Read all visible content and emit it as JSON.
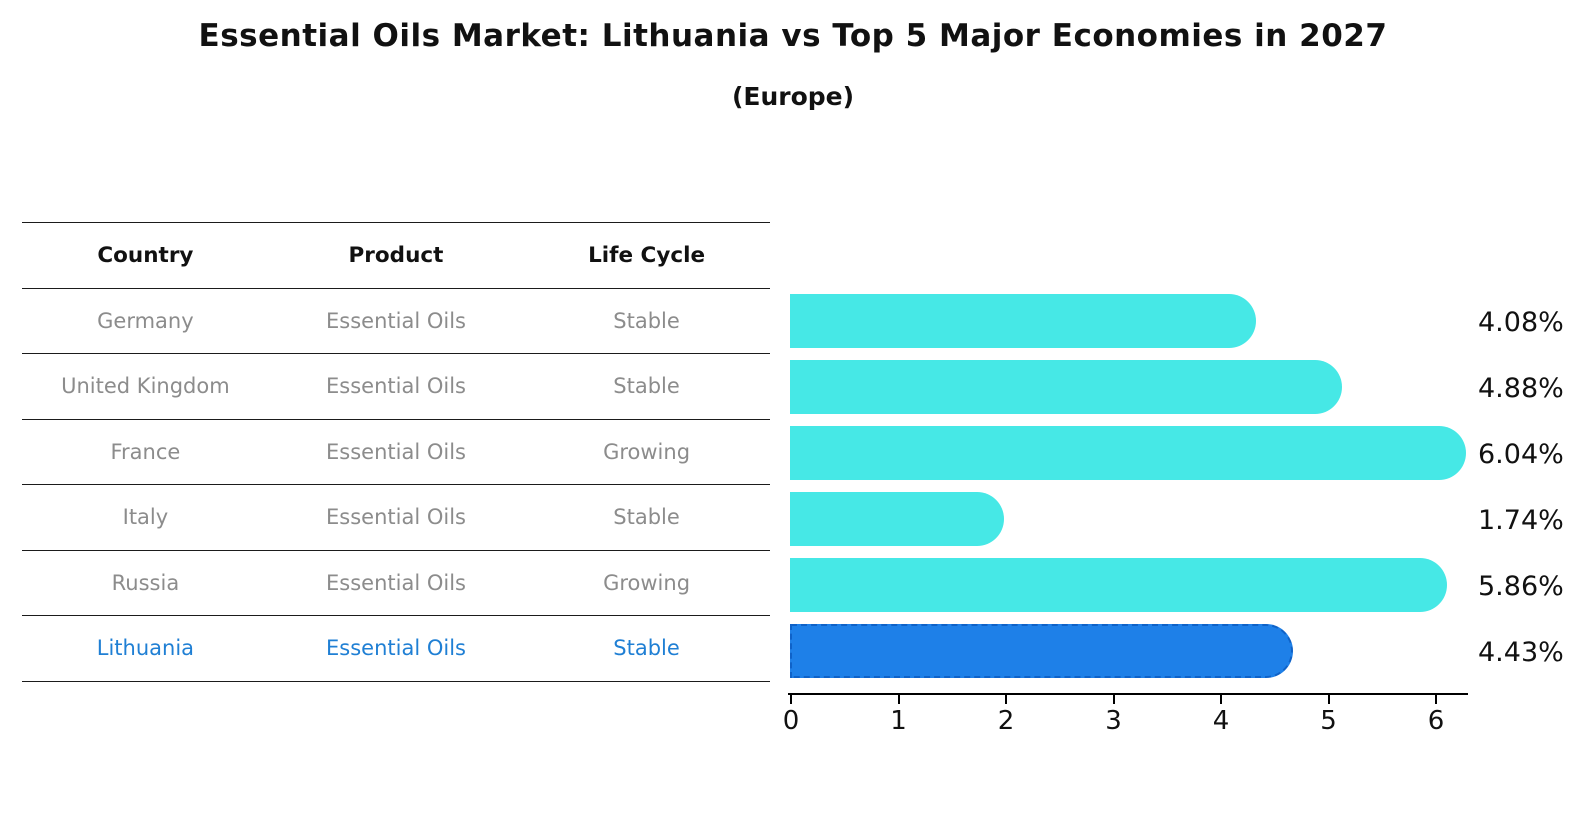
{
  "title": "Essential Oils Market: Lithuania vs Top 5 Major Economies in 2027",
  "subtitle": "(Europe)",
  "table": {
    "headers": [
      "Country",
      "Product",
      "Life Cycle"
    ],
    "rows": [
      {
        "country": "Germany",
        "product": "Essential Oils",
        "life_cycle": "Stable",
        "highlighted": false
      },
      {
        "country": "United Kingdom",
        "product": "Essential Oils",
        "life_cycle": "Stable",
        "highlighted": false
      },
      {
        "country": "France",
        "product": "Essential Oils",
        "life_cycle": "Growing",
        "highlighted": false
      },
      {
        "country": "Italy",
        "product": "Essential Oils",
        "life_cycle": "Stable",
        "highlighted": false
      },
      {
        "country": "Russia",
        "product": "Essential Oils",
        "life_cycle": "Growing",
        "highlighted": false
      },
      {
        "country": "Lithuania",
        "product": "Essential Oils",
        "life_cycle": "Stable",
        "highlighted": true
      }
    ]
  },
  "chart_data": {
    "type": "bar",
    "orientation": "horizontal",
    "categories": [
      "Germany",
      "United Kingdom",
      "France",
      "Italy",
      "Russia",
      "Lithuania"
    ],
    "values": [
      4.08,
      4.88,
      6.04,
      1.74,
      5.86,
      4.43
    ],
    "value_labels": [
      "4.08%",
      "4.88%",
      "6.04%",
      "1.74%",
      "5.86%",
      "4.43%"
    ],
    "highlight_index": 5,
    "xlim": [
      0,
      6.3
    ],
    "x_tick_labels": [
      "0",
      "1",
      "2",
      "3",
      "4",
      "5",
      "6"
    ],
    "grid": false,
    "legend": "none",
    "colors": {
      "bar_default": "#46E8E6",
      "bar_highlight": "#1E80E8",
      "bar_highlight_edge": "#0f62c8",
      "highlight_text": "#1f7fd4",
      "text_muted": "#8c8c8c",
      "text_primary": "#111111"
    }
  }
}
